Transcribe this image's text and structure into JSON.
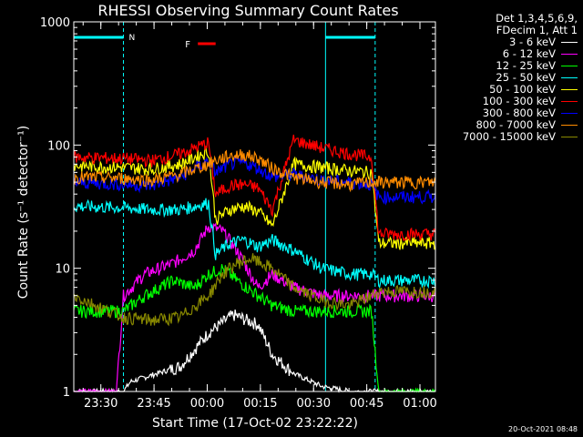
{
  "chart_data": {
    "type": "line",
    "title": "RHESSI Observing Summary Count Rates",
    "xlabel": "Start Time (17-Oct-02 23:22:22)",
    "ylabel": "Count Rate (s⁻¹ detector⁻¹)",
    "yscale": "log",
    "ylim": [
      1,
      1000
    ],
    "xlim_minutes": [
      0,
      102
    ],
    "x_ticks": [
      "23:30",
      "23:45",
      "00:00",
      "00:15",
      "00:30",
      "00:45",
      "01:00"
    ],
    "y_ticks": [
      "1",
      "10",
      "100",
      "1000"
    ],
    "legend_header": [
      "Det 1,3,4,5,6,9,",
      "FDecim 1, Att 1"
    ],
    "legend_position": "top-right outside",
    "series": [
      {
        "name": "3 - 6 keV",
        "color": "#ffffff",
        "x": [
          0,
          14,
          16,
          30,
          38,
          45,
          52,
          56,
          62,
          70,
          78,
          86,
          102
        ],
        "y": [
          1,
          1,
          1.2,
          1.6,
          3,
          4.2,
          3.5,
          2,
          1.4,
          1.1,
          1,
          1,
          1
        ]
      },
      {
        "name": "6 - 12 keV",
        "color": "#ff00ff",
        "x": [
          0,
          12,
          14,
          20,
          28,
          34,
          38,
          42,
          46,
          52,
          56,
          62,
          70,
          78,
          86,
          88,
          102
        ],
        "y": [
          1,
          1,
          6,
          9,
          11,
          14,
          22,
          20,
          14,
          7,
          9,
          7,
          6,
          6,
          6,
          6,
          6
        ]
      },
      {
        "name": "12 - 25 keV",
        "color": "#00ff00",
        "x": [
          0,
          14,
          20,
          28,
          34,
          38,
          42,
          46,
          52,
          56,
          62,
          70,
          78,
          84,
          86,
          102
        ],
        "y": [
          4.5,
          4.5,
          6,
          8,
          7,
          9,
          10,
          8,
          6,
          5,
          4.5,
          4.5,
          4.5,
          4.5,
          1,
          1
        ]
      },
      {
        "name": "25 - 50 keV",
        "color": "#00ffff",
        "x": [
          0,
          14,
          22,
          30,
          38,
          40,
          44,
          48,
          52,
          56,
          62,
          70,
          78,
          84,
          86,
          102
        ],
        "y": [
          32,
          31,
          30,
          30,
          34,
          13,
          16,
          17,
          15,
          17,
          14,
          10,
          9,
          9,
          8,
          8
        ]
      },
      {
        "name": "50 - 100 keV",
        "color": "#ffff00",
        "x": [
          0,
          14,
          22,
          30,
          38,
          40,
          44,
          48,
          52,
          56,
          62,
          70,
          78,
          84,
          86,
          102
        ],
        "y": [
          68,
          66,
          64,
          70,
          90,
          25,
          30,
          32,
          29,
          22,
          70,
          66,
          62,
          60,
          16,
          16
        ]
      },
      {
        "name": "100 - 300 keV",
        "color": "#ff0000",
        "x": [
          0,
          14,
          22,
          30,
          38,
          40,
          44,
          48,
          52,
          56,
          62,
          70,
          78,
          84,
          86,
          102
        ],
        "y": [
          80,
          78,
          75,
          85,
          105,
          40,
          47,
          48,
          45,
          30,
          110,
          95,
          85,
          80,
          19,
          19
        ]
      },
      {
        "name": "300 - 800 keV",
        "color": "#0000ff",
        "x": [
          0,
          14,
          22,
          30,
          38,
          40,
          44,
          48,
          52,
          56,
          62,
          70,
          78,
          84,
          86,
          102
        ],
        "y": [
          50,
          48,
          47,
          55,
          75,
          60,
          70,
          72,
          65,
          55,
          58,
          52,
          50,
          48,
          38,
          38
        ]
      },
      {
        "name": "800 - 7000 keV",
        "color": "#ff8c00",
        "x": [
          0,
          14,
          22,
          30,
          38,
          40,
          44,
          48,
          52,
          56,
          62,
          70,
          78,
          84,
          86,
          102
        ],
        "y": [
          55,
          54,
          52,
          58,
          70,
          75,
          82,
          84,
          78,
          65,
          55,
          50,
          48,
          50,
          50,
          50
        ]
      },
      {
        "name": "7000 - 15000 keV",
        "color": "#888800",
        "x": [
          0,
          14,
          22,
          30,
          38,
          42,
          46,
          50,
          56,
          62,
          70,
          78,
          84,
          86,
          102
        ],
        "y": [
          6,
          4,
          3.8,
          4,
          6,
          9,
          11,
          12,
          10,
          7,
          5.5,
          5,
          6,
          6.5,
          6.5
        ]
      }
    ],
    "markers": {
      "night_intervals_minutes": [
        [
          0,
          14
        ],
        [
          71,
          85
        ]
      ],
      "night_label": "N",
      "flare_label": "F",
      "flare_interval_minutes": [
        35,
        40
      ]
    }
  },
  "colors": {
    "night": "#00ffff",
    "flare": "#ff0000",
    "axes": "#ffffff"
  },
  "timestamp": "20-Oct-2021 08:48"
}
